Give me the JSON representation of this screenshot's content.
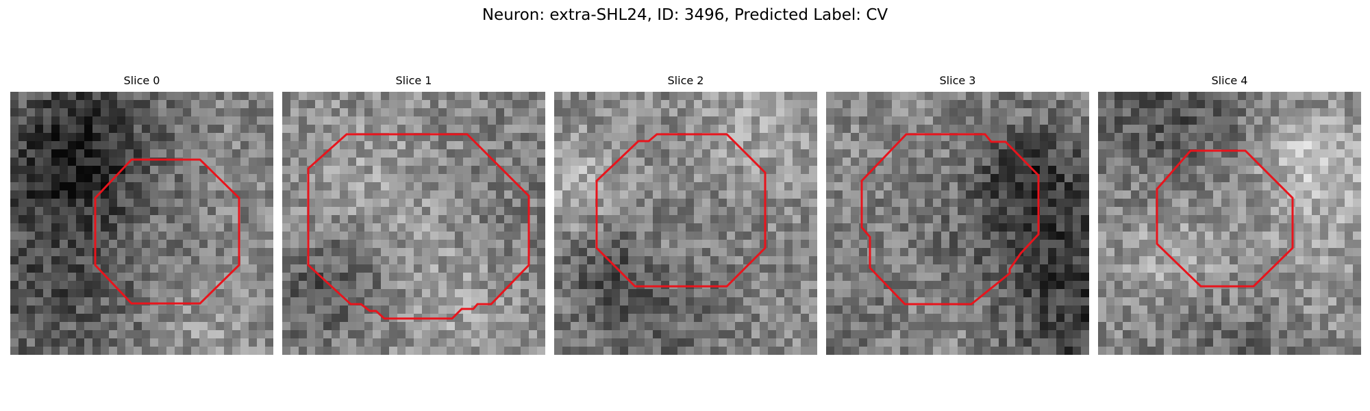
{
  "figure": {
    "title": "Neuron: extra-SHL24, ID: 3496, Predicted Label: CV",
    "contour_color": "#e8141c"
  },
  "slices": [
    {
      "title": "Slice 0"
    },
    {
      "title": "Slice 1"
    },
    {
      "title": "Slice 2"
    },
    {
      "title": "Slice 3"
    },
    {
      "title": "Slice 4"
    }
  ]
}
